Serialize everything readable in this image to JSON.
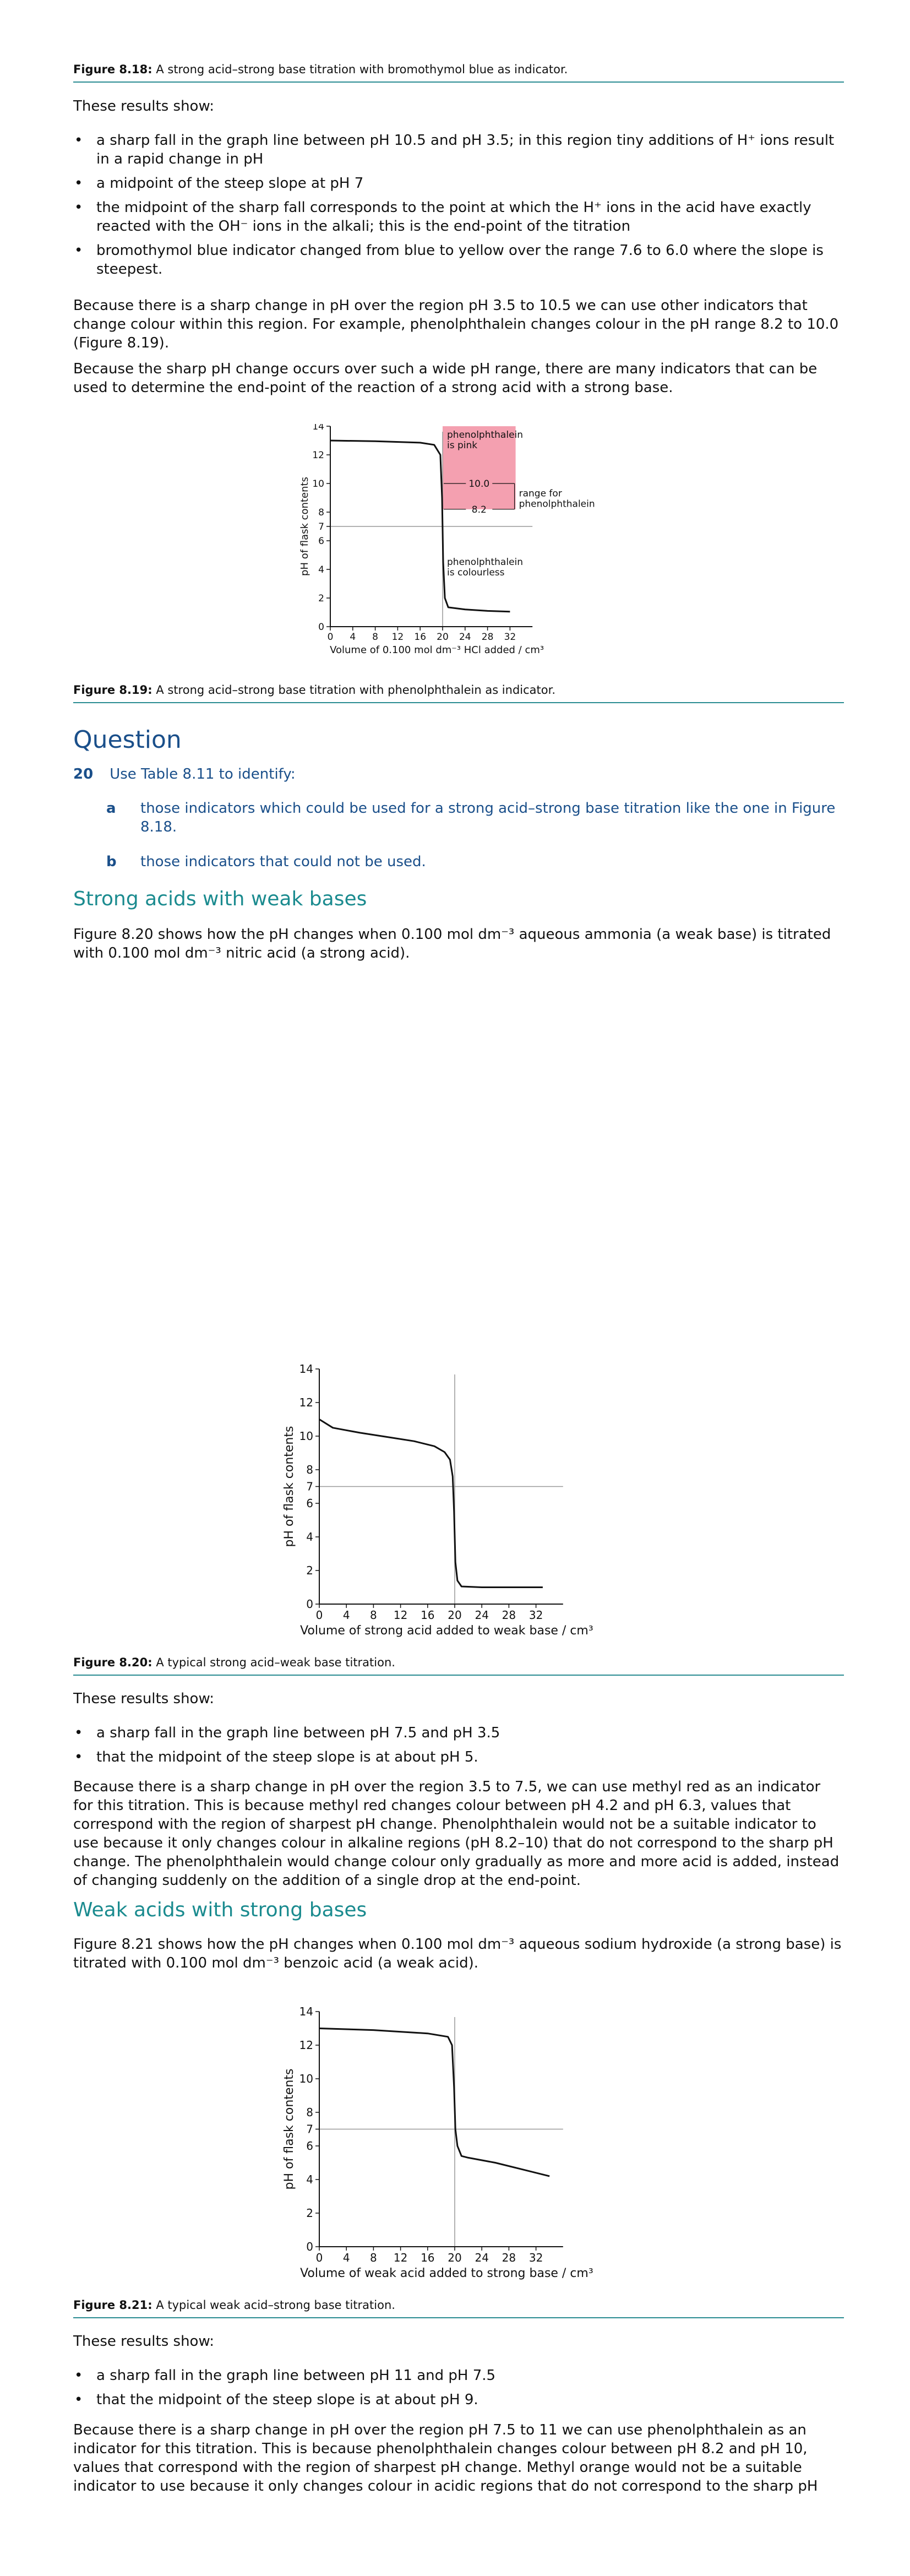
{
  "fig818": {
    "label": "Figure 8.18:",
    "text": " A strong acid–strong base titration with bromothymol blue as indicator."
  },
  "results_intro_1": "These results show:",
  "bullets_1": [
    "a sharp fall in the graph line between pH 10.5 and pH 3.5; in this region tiny additions of H⁺ ions result in a rapid change in pH",
    "a midpoint of the steep slope at pH 7",
    "the midpoint of the sharp fall corresponds to the point at which the H⁺ ions in the acid have exactly reacted with the OH⁻ ions in the alkali; this is the end-point of the titration",
    "bromothymol blue indicator changed from blue to yellow over the range 7.6 to 6.0 where the slope is steepest."
  ],
  "para_1": "Because there is a sharp change in pH over the region pH 3.5 to 10.5 we can use other indicators that change colour within this region. For example, phenolphthalein changes colour in the pH range 8.2 to 10.0 (Figure 8.19).",
  "para_2": "Because the sharp pH change occurs over such a wide pH range, there are many indicators that can be used to determine the end-point of the reaction of a strong acid with a strong base.",
  "fig819": {
    "label": "Figure 8.19:",
    "text": " A strong acid–strong base titration with phenolphthalein as indicator."
  },
  "question": {
    "heading": "Question",
    "number": "20",
    "text": "Use Table 8.11 to identify:",
    "parts": [
      {
        "letter": "a",
        "text": "those indicators which could be used for a strong acid–strong base titration like the one in Figure 8.18."
      },
      {
        "letter": "b",
        "text": "those indicators that could not be used."
      }
    ]
  },
  "sect_1": "Strong acids with weak bases",
  "para_3": "Figure 8.20 shows how the pH changes when 0.100 mol dm⁻³ aqueous ammonia (a weak base) is titrated with 0.100 mol dm⁻³ nitric acid (a strong acid).",
  "fig820": {
    "label": "Figure 8.20:",
    "text": " A typical strong acid–weak base titration."
  },
  "results_intro_2": "These results show:",
  "bullets_2": [
    "a sharp fall in the graph line between pH 7.5 and pH 3.5",
    "that the midpoint of the steep slope is at about pH 5."
  ],
  "para_4": "Because there is a sharp change in pH over the region 3.5 to 7.5, we can use methyl red as an indicator for this titration. This is because methyl red changes colour between pH 4.2 and pH 6.3, values that correspond with the region of sharpest pH change. Phenolphthalein would not be a suitable indicator to use because it only changes colour in alkaline regions (pH 8.2–10) that do not correspond to the sharp pH change. The phenolphthalein would change colour only gradually as more and more acid is added, instead of changing suddenly on the addition of a single drop at the end-point.",
  "sect_2": "Weak acids with strong bases",
  "para_5": "Figure 8.21 shows how the pH changes when 0.100 mol dm⁻³ aqueous sodium hydroxide (a strong base) is titrated with 0.100 mol dm⁻³ benzoic acid (a weak acid).",
  "fig821": {
    "label": "Figure 8.21:",
    "text": " A typical weak acid–strong base titration."
  },
  "results_intro_3": "These results show:",
  "bullets_3": [
    "a sharp fall in the graph line between pH 11 and pH 7.5",
    "that the midpoint of the steep slope is at about pH 9."
  ],
  "para_6": "Because there is a sharp change in pH over the region pH 7.5 to 11 we can use phenolphthalein as an indicator for this titration. This is because phenolphthalein changes colour between pH 8.2 and pH 10, values that correspond with the region of sharpest pH change. Methyl orange would not be a suitable indicator to use because it only changes colour in acidic regions that do not correspond to the sharp pH",
  "colors": {
    "pink_band": "#f4a0b0",
    "accent_teal": "#2a8c92",
    "question_blue": "#1a4f8a",
    "section_teal": "#1b8b8f",
    "ref_line": "#999999"
  },
  "chart_data": [
    {
      "type": "line",
      "id": "fig819",
      "xlabel": "Volume of 0.100 mol dm⁻³ HCl added / cm³",
      "ylabel": "pH of flask contents",
      "xlim": [
        0,
        36
      ],
      "ylim": [
        0,
        14
      ],
      "xticks": [
        0,
        4,
        8,
        12,
        16,
        20,
        24,
        28,
        32
      ],
      "yticks": [
        0,
        2,
        4,
        6,
        7,
        8,
        10,
        12,
        14
      ],
      "ref_y": 7,
      "ref_x": 20,
      "series": [
        {
          "x": [
            0,
            8,
            16,
            18.5,
            19.6,
            19.9,
            20.1,
            20.4,
            21,
            24,
            28,
            32
          ],
          "y": [
            13.0,
            12.95,
            12.85,
            12.7,
            12.0,
            9.0,
            4.5,
            2.0,
            1.35,
            1.2,
            1.1,
            1.05
          ]
        }
      ],
      "band": {
        "y_from": 8.2,
        "y_to": 14,
        "x_from": 20,
        "x_to": 33
      },
      "band_labels": {
        "top": [
          "phenolphthalein",
          "is pink"
        ],
        "tick_high": "10.0",
        "tick_low": "8.2",
        "range": [
          "range for",
          "phenolphthalein"
        ],
        "bottom": [
          "phenolphthalein",
          "is colourless"
        ]
      }
    },
    {
      "type": "line",
      "id": "fig820",
      "xlabel": "Volume of strong acid added to weak base / cm³",
      "ylabel": "pH of flask contents",
      "xlim": [
        0,
        36
      ],
      "ylim": [
        0,
        14
      ],
      "xticks": [
        0,
        4,
        8,
        12,
        16,
        20,
        24,
        28,
        32
      ],
      "yticks": [
        0,
        2,
        4,
        6,
        7,
        8,
        10,
        12,
        14
      ],
      "ref_y": 7,
      "ref_x": 20,
      "series": [
        {
          "x": [
            0,
            2,
            6,
            10,
            14,
            17,
            18.5,
            19.3,
            19.7,
            19.9,
            20.1,
            20.4,
            21,
            24,
            28,
            33
          ],
          "y": [
            11.0,
            10.5,
            10.2,
            9.95,
            9.7,
            9.4,
            9.05,
            8.6,
            7.6,
            5.5,
            2.5,
            1.4,
            1.05,
            1.0,
            1.0,
            1.0
          ]
        }
      ]
    },
    {
      "type": "line",
      "id": "fig821",
      "xlabel": "Volume of weak acid added to strong base / cm³",
      "ylabel": "pH of flask contents",
      "xlim": [
        0,
        36
      ],
      "ylim": [
        0,
        14
      ],
      "xticks": [
        0,
        4,
        8,
        12,
        16,
        20,
        24,
        28,
        32
      ],
      "yticks": [
        0,
        2,
        4,
        6,
        7,
        8,
        10,
        12,
        14
      ],
      "ref_y": 7,
      "ref_x": 20,
      "series": [
        {
          "x": [
            0,
            8,
            16,
            19,
            19.6,
            19.9,
            20.1,
            20.4,
            21,
            22,
            26,
            30,
            34
          ],
          "y": [
            13.0,
            12.9,
            12.7,
            12.5,
            12.0,
            9.5,
            7.0,
            6.0,
            5.4,
            5.3,
            5.0,
            4.6,
            4.2
          ]
        }
      ]
    }
  ]
}
